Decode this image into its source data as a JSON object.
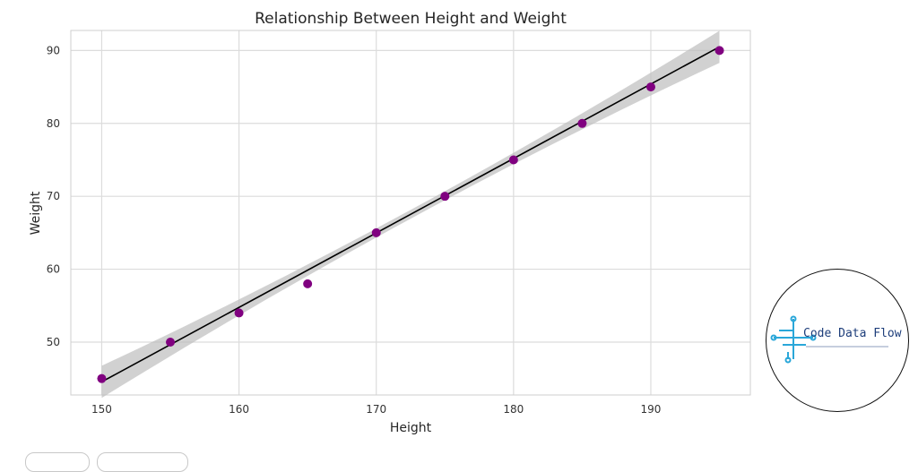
{
  "chart_data": {
    "type": "scatter",
    "title": "Relationship Between Height and Weight",
    "xlabel": "Height",
    "ylabel": "Weight",
    "xlim": [
      147.75,
      197.25
    ],
    "ylim": [
      42.75,
      92.75
    ],
    "xticks": [
      150,
      160,
      170,
      180,
      190
    ],
    "yticks": [
      50,
      60,
      70,
      80,
      90
    ],
    "grid": true,
    "series": [
      {
        "x": [
          150,
          155,
          160,
          165,
          170,
          175,
          180,
          185,
          190,
          195
        ],
        "y": [
          45,
          50,
          54,
          58,
          65,
          70,
          75,
          80,
          85,
          90
        ],
        "color": "#800080"
      }
    ],
    "regression": {
      "slope": 1.0212,
      "intercept": -108.63,
      "ci_color": "#bdbdbd",
      "line_color": "#000000"
    }
  },
  "logo": {
    "text": "Code Data Flow",
    "tagline": "SIMPLIFYING CODE, EMPOWERING DATA",
    "icon": "circuit-icon",
    "accent": "#2aa7d9"
  }
}
